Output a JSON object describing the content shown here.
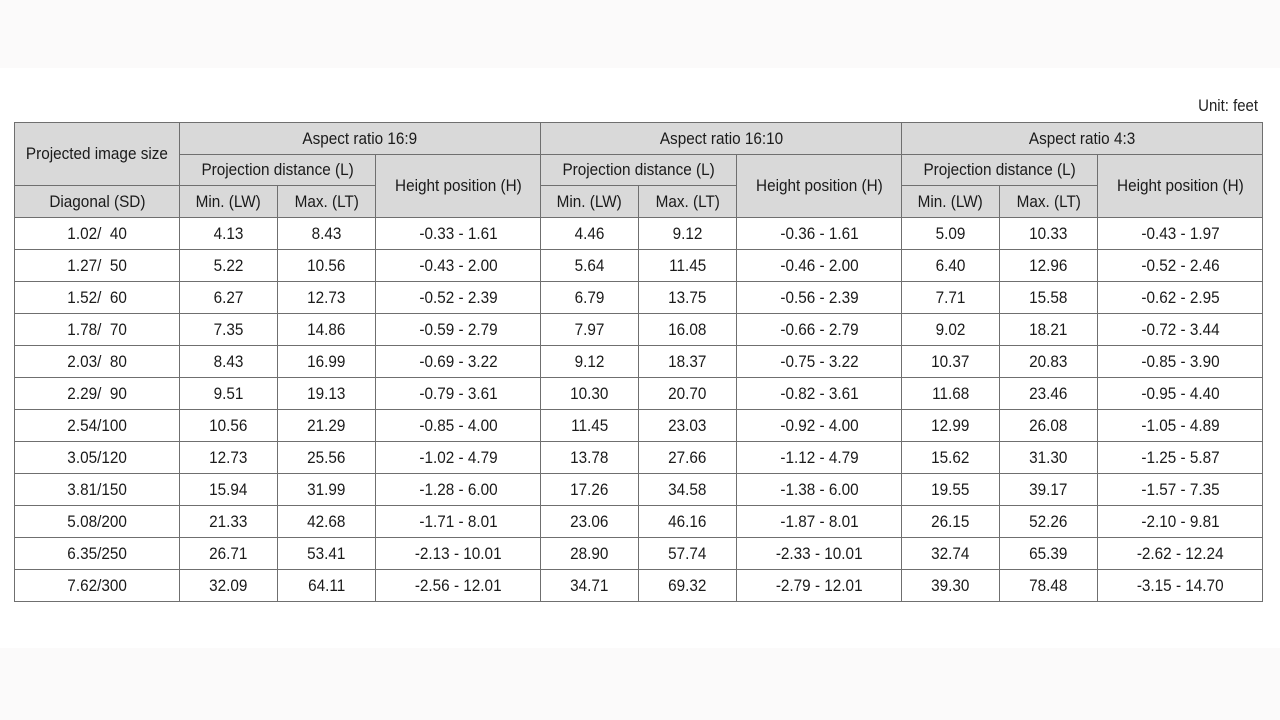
{
  "unit_label": "Unit: feet",
  "headers": {
    "projected_image_size": "Projected image size",
    "diagonal": "Diagonal (SD)",
    "aspect_16_9": "Aspect ratio 16:9",
    "aspect_16_10": "Aspect ratio 16:10",
    "aspect_4_3": "Aspect ratio 4:3",
    "projection_distance": "Projection distance (L)",
    "height_position": "Height position (H)",
    "min": "Min. (LW)",
    "max": "Max. (LT)"
  },
  "rows": [
    [
      "1.02/  40",
      "4.13",
      "8.43",
      "-0.33 - 1.61",
      "4.46",
      "9.12",
      "-0.36 - 1.61",
      "5.09",
      "10.33",
      "-0.43 - 1.97"
    ],
    [
      "1.27/  50",
      "5.22",
      "10.56",
      "-0.43 - 2.00",
      "5.64",
      "11.45",
      "-0.46 - 2.00",
      "6.40",
      "12.96",
      "-0.52 - 2.46"
    ],
    [
      "1.52/  60",
      "6.27",
      "12.73",
      "-0.52 - 2.39",
      "6.79",
      "13.75",
      "-0.56 - 2.39",
      "7.71",
      "15.58",
      "-0.62 - 2.95"
    ],
    [
      "1.78/  70",
      "7.35",
      "14.86",
      "-0.59 - 2.79",
      "7.97",
      "16.08",
      "-0.66 - 2.79",
      "9.02",
      "18.21",
      "-0.72 - 3.44"
    ],
    [
      "2.03/  80",
      "8.43",
      "16.99",
      "-0.69 - 3.22",
      "9.12",
      "18.37",
      "-0.75 - 3.22",
      "10.37",
      "20.83",
      "-0.85 - 3.90"
    ],
    [
      "2.29/  90",
      "9.51",
      "19.13",
      "-0.79 - 3.61",
      "10.30",
      "20.70",
      "-0.82 - 3.61",
      "11.68",
      "23.46",
      "-0.95 - 4.40"
    ],
    [
      "2.54/100",
      "10.56",
      "21.29",
      "-0.85 - 4.00",
      "11.45",
      "23.03",
      "-0.92 - 4.00",
      "12.99",
      "26.08",
      "-1.05 - 4.89"
    ],
    [
      "3.05/120",
      "12.73",
      "25.56",
      "-1.02 - 4.79",
      "13.78",
      "27.66",
      "-1.12 - 4.79",
      "15.62",
      "31.30",
      "-1.25 - 5.87"
    ],
    [
      "3.81/150",
      "15.94",
      "31.99",
      "-1.28 - 6.00",
      "17.26",
      "34.58",
      "-1.38 - 6.00",
      "19.55",
      "39.17",
      "-1.57 - 7.35"
    ],
    [
      "5.08/200",
      "21.33",
      "42.68",
      "-1.71 - 8.01",
      "23.06",
      "46.16",
      "-1.87 - 8.01",
      "26.15",
      "52.26",
      "-2.10 - 9.81"
    ],
    [
      "6.35/250",
      "26.71",
      "53.41",
      "-2.13 - 10.01",
      "28.90",
      "57.74",
      "-2.33 - 10.01",
      "32.74",
      "65.39",
      "-2.62 - 12.24"
    ],
    [
      "7.62/300",
      "32.09",
      "64.11",
      "-2.56 - 12.01",
      "34.71",
      "69.32",
      "-2.79 - 12.01",
      "39.30",
      "78.48",
      "-3.15 - 14.70"
    ]
  ]
}
